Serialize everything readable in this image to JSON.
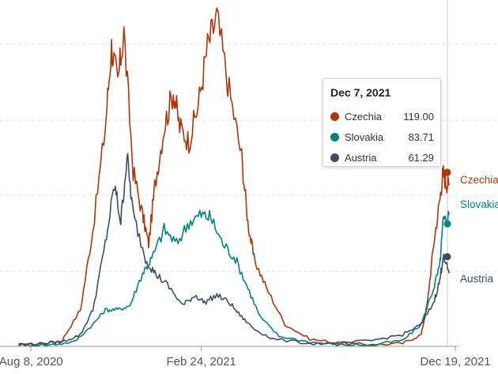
{
  "chart_data": {
    "type": "line",
    "x_ticks": [
      "Aug 8, 2020",
      "Feb 24, 2021",
      "Dec 19, 2021"
    ],
    "ylim": [
      0,
      226
    ],
    "grid": true,
    "series": [
      {
        "name": "Czechia",
        "color": "#b13507",
        "end_label": "Czechia",
        "highlight": 119.0,
        "points": [
          [
            2020.56,
            1
          ],
          [
            2020.64,
            2
          ],
          [
            2020.7,
            4
          ],
          [
            2020.76,
            25
          ],
          [
            2020.8,
            80
          ],
          [
            2020.84,
            150
          ],
          [
            2020.86,
            205
          ],
          [
            2020.88,
            180
          ],
          [
            2020.9,
            215
          ],
          [
            2020.93,
            120
          ],
          [
            2020.96,
            90
          ],
          [
            2020.98,
            70
          ],
          [
            2021.0,
            110
          ],
          [
            2021.03,
            150
          ],
          [
            2021.06,
            175
          ],
          [
            2021.08,
            150
          ],
          [
            2021.11,
            140
          ],
          [
            2021.14,
            165
          ],
          [
            2021.17,
            205
          ],
          [
            2021.2,
            225
          ],
          [
            2021.24,
            175
          ],
          [
            2021.28,
            130
          ],
          [
            2021.3,
            85
          ],
          [
            2021.32,
            60
          ],
          [
            2021.36,
            40
          ],
          [
            2021.42,
            15
          ],
          [
            2021.5,
            5
          ],
          [
            2021.6,
            2
          ],
          [
            2021.7,
            1
          ],
          [
            2021.8,
            2
          ],
          [
            2021.86,
            8
          ],
          [
            2021.88,
            30
          ],
          [
            2021.9,
            70
          ],
          [
            2021.92,
            100
          ],
          [
            2021.93,
            119
          ],
          [
            2021.94,
            112
          ],
          [
            2021.95,
            110
          ]
        ]
      },
      {
        "name": "Slovakia",
        "color": "#00847e",
        "end_label": "Slovakia",
        "highlight": 83.71,
        "points": [
          [
            2020.56,
            1
          ],
          [
            2020.66,
            1
          ],
          [
            2020.74,
            3
          ],
          [
            2020.8,
            15
          ],
          [
            2020.84,
            25
          ],
          [
            2020.88,
            25
          ],
          [
            2020.92,
            28
          ],
          [
            2020.96,
            50
          ],
          [
            2020.99,
            60
          ],
          [
            2021.03,
            80
          ],
          [
            2021.07,
            70
          ],
          [
            2021.11,
            85
          ],
          [
            2021.15,
            90
          ],
          [
            2021.18,
            88
          ],
          [
            2021.22,
            70
          ],
          [
            2021.26,
            60
          ],
          [
            2021.3,
            40
          ],
          [
            2021.34,
            20
          ],
          [
            2021.4,
            7
          ],
          [
            2021.5,
            3
          ],
          [
            2021.6,
            1
          ],
          [
            2021.7,
            1
          ],
          [
            2021.8,
            4
          ],
          [
            2021.86,
            15
          ],
          [
            2021.9,
            40
          ],
          [
            2021.92,
            55
          ],
          [
            2021.93,
            84
          ],
          [
            2021.95,
            90
          ]
        ]
      },
      {
        "name": "Austria",
        "color": "#3c4e66",
        "end_label": "Austria",
        "highlight": 61.29,
        "points": [
          [
            2020.56,
            1
          ],
          [
            2020.64,
            2
          ],
          [
            2020.7,
            3
          ],
          [
            2020.76,
            8
          ],
          [
            2020.8,
            25
          ],
          [
            2020.84,
            70
          ],
          [
            2020.87,
            110
          ],
          [
            2020.89,
            85
          ],
          [
            2020.91,
            130
          ],
          [
            2020.93,
            90
          ],
          [
            2020.97,
            60
          ],
          [
            2021.0,
            50
          ],
          [
            2021.04,
            42
          ],
          [
            2021.09,
            28
          ],
          [
            2021.13,
            35
          ],
          [
            2021.16,
            30
          ],
          [
            2021.2,
            35
          ],
          [
            2021.24,
            30
          ],
          [
            2021.28,
            20
          ],
          [
            2021.32,
            12
          ],
          [
            2021.38,
            5
          ],
          [
            2021.5,
            2
          ],
          [
            2021.6,
            2
          ],
          [
            2021.7,
            4
          ],
          [
            2021.8,
            8
          ],
          [
            2021.86,
            15
          ],
          [
            2021.9,
            30
          ],
          [
            2021.92,
            45
          ],
          [
            2021.93,
            61
          ],
          [
            2021.95,
            50
          ]
        ]
      }
    ]
  },
  "tooltip": {
    "date": "Dec 7, 2021",
    "rows": [
      {
        "name": "Czechia",
        "value": "119.00",
        "color": "#b13507"
      },
      {
        "name": "Slovakia",
        "value": "83.71",
        "color": "#00847e"
      },
      {
        "name": "Austria",
        "value": "61.29",
        "color": "#3c4e66"
      }
    ]
  }
}
